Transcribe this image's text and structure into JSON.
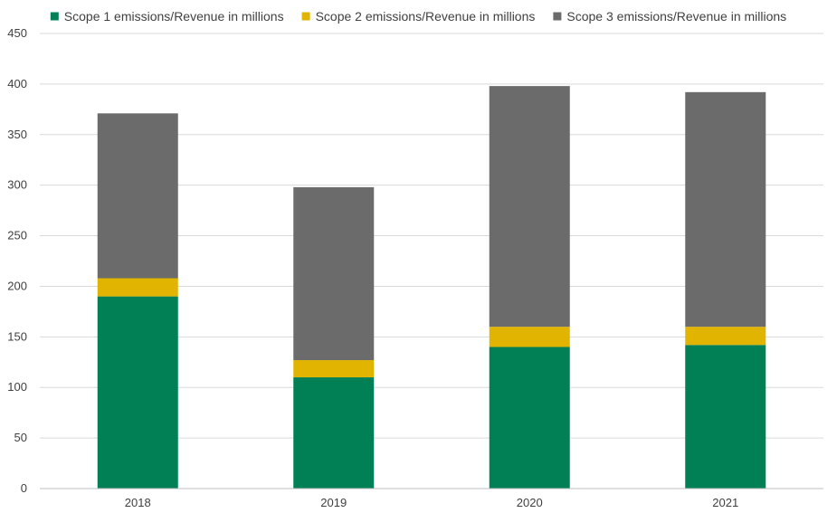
{
  "chart_data": {
    "type": "bar",
    "stacked": true,
    "title": "",
    "xlabel": "",
    "ylabel": "",
    "categories": [
      "2018",
      "2019",
      "2020",
      "2021"
    ],
    "series": [
      {
        "name": "Scope 1 emissions/Revenue in millions",
        "color": "#008054",
        "values": [
          190,
          110,
          140,
          142
        ]
      },
      {
        "name": "Scope 2 emissions/Revenue in millions",
        "color": "#e0b400",
        "values": [
          18,
          17,
          20,
          18
        ]
      },
      {
        "name": "Scope 3 emissions/Revenue in millions",
        "color": "#6b6b6b",
        "values": [
          163,
          171,
          238,
          232
        ]
      }
    ],
    "ylim": [
      0,
      450
    ],
    "yticks": [
      0,
      50,
      100,
      150,
      200,
      250,
      300,
      350,
      400,
      450
    ],
    "grid": true,
    "legend_position": "top"
  }
}
